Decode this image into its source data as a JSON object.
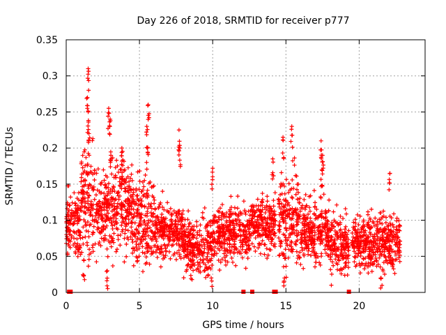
{
  "chart_data": {
    "type": "scatter",
    "title": "Day 226 of 2018, SRMTID for receiver p777",
    "xlabel": "GPS time / hours",
    "ylabel": "SRMTID / TECUs",
    "xlim": [
      0,
      24.5
    ],
    "ylim": [
      0,
      0.35
    ],
    "x_ticks": [
      0,
      5,
      10,
      15,
      20
    ],
    "x_tick_labels": [
      "0",
      "5",
      "10",
      "15",
      "20"
    ],
    "y_ticks": [
      0,
      0.05,
      0.1,
      0.15,
      0.2,
      0.25,
      0.3,
      0.35
    ],
    "y_tick_labels": [
      "0",
      "0.05",
      "0.1",
      "0.15",
      "0.2",
      "0.25",
      "0.3",
      "0.35"
    ],
    "grid": true,
    "marker": "plus",
    "color": "#ff0000",
    "point_count_approx": 3000,
    "outage_markers_x": [
      0.2,
      0.3,
      12.1,
      12.7,
      14.2,
      14.3,
      19.3
    ],
    "activity_profile": [
      {
        "x_range": [
          0.0,
          1.0
        ],
        "median": 0.095,
        "spread": 0.03
      },
      {
        "x_range": [
          1.0,
          2.0
        ],
        "median": 0.13,
        "spread": 0.05
      },
      {
        "x_range": [
          2.0,
          3.0
        ],
        "median": 0.11,
        "spread": 0.04
      },
      {
        "x_range": [
          3.0,
          4.5
        ],
        "median": 0.12,
        "spread": 0.04
      },
      {
        "x_range": [
          4.5,
          6.0
        ],
        "median": 0.1,
        "spread": 0.04
      },
      {
        "x_range": [
          6.0,
          8.0
        ],
        "median": 0.085,
        "spread": 0.025
      },
      {
        "x_range": [
          8.0,
          10.0
        ],
        "median": 0.065,
        "spread": 0.025
      },
      {
        "x_range": [
          10.0,
          12.5
        ],
        "median": 0.08,
        "spread": 0.025
      },
      {
        "x_range": [
          12.5,
          14.3
        ],
        "median": 0.095,
        "spread": 0.025
      },
      {
        "x_range": [
          14.5,
          16.0
        ],
        "median": 0.1,
        "spread": 0.04
      },
      {
        "x_range": [
          16.0,
          18.0
        ],
        "median": 0.085,
        "spread": 0.03
      },
      {
        "x_range": [
          18.0,
          19.3
        ],
        "median": 0.065,
        "spread": 0.025
      },
      {
        "x_range": [
          19.5,
          22.8
        ],
        "median": 0.07,
        "spread": 0.025
      }
    ],
    "spikes": [
      {
        "x": 1.5,
        "y": 0.31
      },
      {
        "x": 1.45,
        "y": 0.27
      },
      {
        "x": 1.5,
        "y": 0.25
      },
      {
        "x": 1.55,
        "y": 0.22
      },
      {
        "x": 2.9,
        "y": 0.255
      },
      {
        "x": 3.0,
        "y": 0.24
      },
      {
        "x": 3.05,
        "y": 0.19
      },
      {
        "x": 3.8,
        "y": 0.2
      },
      {
        "x": 4.0,
        "y": 0.17
      },
      {
        "x": 5.6,
        "y": 0.26
      },
      {
        "x": 5.5,
        "y": 0.23
      },
      {
        "x": 5.55,
        "y": 0.2
      },
      {
        "x": 7.7,
        "y": 0.225
      },
      {
        "x": 7.75,
        "y": 0.2
      },
      {
        "x": 10.0,
        "y": 0.172
      },
      {
        "x": 14.1,
        "y": 0.185
      },
      {
        "x": 14.8,
        "y": 0.215
      },
      {
        "x": 15.4,
        "y": 0.23
      },
      {
        "x": 17.4,
        "y": 0.21
      },
      {
        "x": 17.5,
        "y": 0.19
      },
      {
        "x": 17.45,
        "y": 0.17
      },
      {
        "x": 22.1,
        "y": 0.165
      },
      {
        "x": 1.2,
        "y": 0.045
      },
      {
        "x": 2.8,
        "y": 0.03
      },
      {
        "x": 9.9,
        "y": 0.02
      },
      {
        "x": 14.9,
        "y": 0.02
      },
      {
        "x": 18.1,
        "y": 0.01
      },
      {
        "x": 21.5,
        "y": 0.02
      }
    ]
  }
}
